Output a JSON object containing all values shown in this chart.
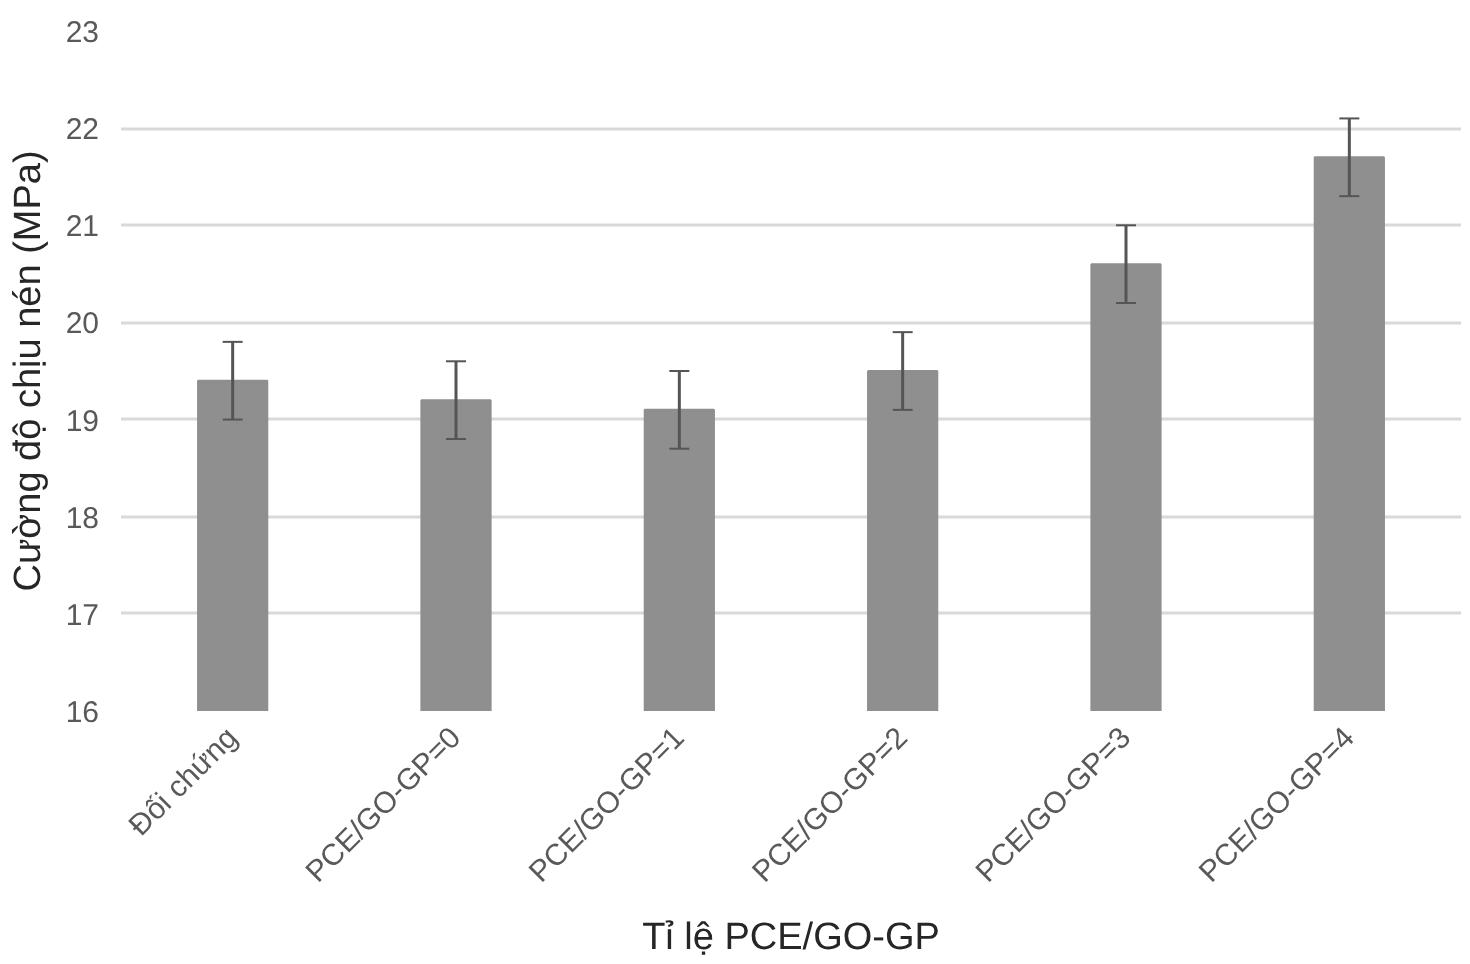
{
  "chart_data": {
    "type": "bar",
    "xlabel": "Tỉ lệ PCE/GO-GP",
    "ylabel": "Cường độ chịu nén (MPa)",
    "categories": [
      "Đối chứng",
      "PCE/GO-GP=0",
      "PCE/GO-GP=1",
      "PCE/GO-GP=2",
      "PCE/GO-GP=3",
      "PCE/GO-GP=4"
    ],
    "values": [
      19.4,
      19.2,
      19.1,
      19.5,
      20.6,
      21.7
    ],
    "errors": [
      0.4,
      0.4,
      0.4,
      0.4,
      0.4,
      0.4
    ],
    "color": "#8f8f8f",
    "ylim": [
      16,
      23
    ],
    "yticks": [
      16,
      17,
      18,
      19,
      20,
      21,
      22,
      23
    ],
    "grid": "y"
  }
}
